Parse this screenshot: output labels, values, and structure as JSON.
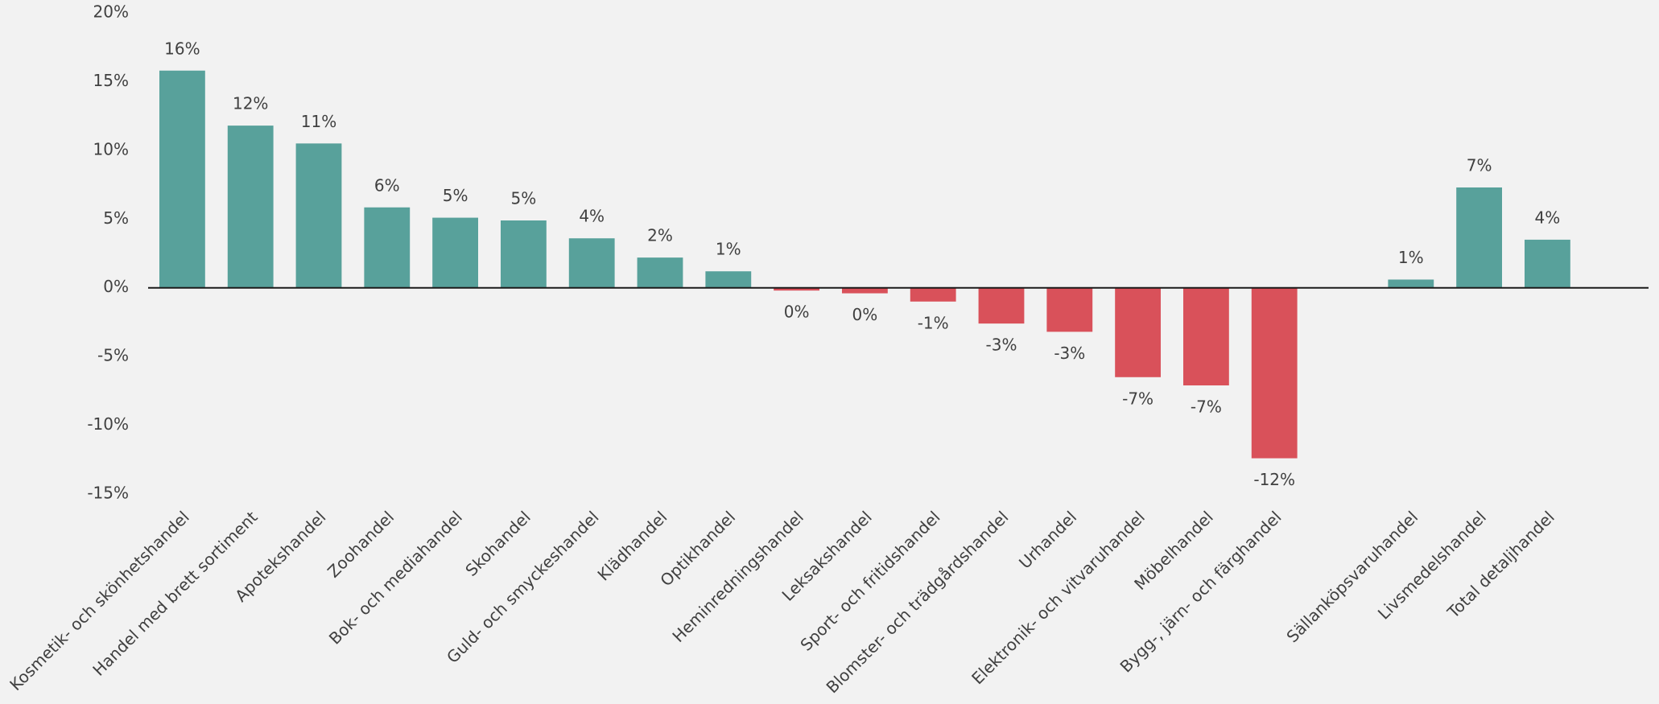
{
  "chart_data": {
    "type": "bar",
    "categories": [
      "Kosmetik- och skönhetshandel",
      "Handel med brett sortiment",
      "Apotekshandel",
      "Zoohandel",
      "Bok- och mediahandel",
      "Skohandel",
      "Guld- och smyckeshandel",
      "Klädhandel",
      "Optikhandel",
      "Heminredningshandel",
      "Leksakshandel",
      "Sport- och fritidshandel",
      "Blomster- och trädgårdshandel",
      "Urhandel",
      "Elektronik- och vitvaruhandel",
      "Möbelhandel",
      "Bygg-, järn- och färghandel",
      null,
      "Sällanköpsvaruhandel",
      "Livsmedelshandel",
      "Total detaljhandel"
    ],
    "values": [
      15.8,
      11.8,
      10.5,
      5.85,
      5.1,
      4.9,
      3.6,
      2.2,
      1.2,
      -0.2,
      -0.4,
      -1.0,
      -2.6,
      -3.2,
      -6.5,
      -7.1,
      -12.4,
      null,
      0.6,
      7.3,
      3.5
    ],
    "value_labels": [
      "16%",
      "12%",
      "11%",
      "6%",
      "5%",
      "5%",
      "4%",
      "2%",
      "1%",
      "0%",
      "0%",
      "-1%",
      "-3%",
      "-3%",
      "-7%",
      "-7%",
      "-12%",
      null,
      "1%",
      "7%",
      "4%"
    ],
    "color": "#58a19b",
    "negative_color": "#d9515a",
    "ylim": [
      -15,
      20
    ],
    "yticks": [
      {
        "value": -15,
        "label": "-15%"
      },
      {
        "value": -10,
        "label": "-10%"
      },
      {
        "value": -5,
        "label": "-5%"
      },
      {
        "value": 0,
        "label": "0%"
      },
      {
        "value": 5,
        "label": "5%"
      },
      {
        "value": 10,
        "label": "10%"
      },
      {
        "value": 15,
        "label": "15%"
      },
      {
        "value": 20,
        "label": "20%"
      }
    ],
    "grid": false
  }
}
